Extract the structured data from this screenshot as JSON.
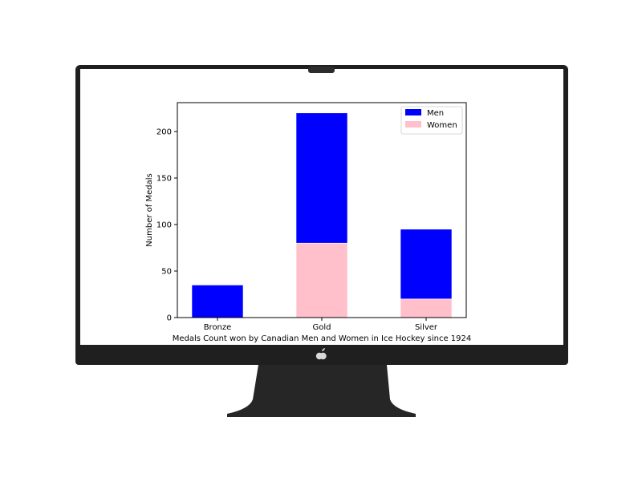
{
  "device": {
    "frame_color": "#1f1f1f",
    "screen_color": "#ffffff",
    "stand_color": "#262626",
    "camera_icon": "webcam-notch",
    "logo_icon": "apple-logo"
  },
  "chart_data": {
    "type": "bar",
    "stacked": true,
    "categories": [
      "Bronze",
      "Gold",
      "Silver"
    ],
    "series": [
      {
        "name": "Women",
        "values": [
          0,
          80,
          20
        ],
        "color": "#ffc0cb"
      },
      {
        "name": "Men",
        "values": [
          35,
          140,
          75
        ],
        "color": "#0000ff"
      }
    ],
    "legend_order": [
      "Men",
      "Women"
    ],
    "title": "",
    "xlabel": "Medals Count won by Canadian Men and Women in Ice Hockey since 1924",
    "ylabel": "Number of Medals",
    "ylim": [
      0,
      230
    ],
    "yticks": [
      0,
      50,
      100,
      150,
      200
    ],
    "grid": false,
    "legend_position": "top-right"
  }
}
